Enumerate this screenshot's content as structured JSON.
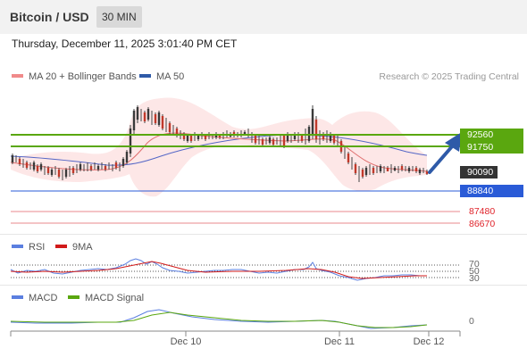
{
  "header": {
    "title": "Bitcoin / USD",
    "interval": "30 MIN"
  },
  "timestamp": "Thursday, December 11, 2025 3:01:40 PM CET",
  "legend": {
    "ma20": {
      "label": "MA 20 + Bollinger Bands",
      "color": "#f08a8a"
    },
    "ma50": {
      "label": "MA 50",
      "color": "#2e5aa8"
    }
  },
  "credit": "Research © 2025 Trading Central",
  "levels": {
    "r2": "92560",
    "r1": "91750",
    "last": "90090",
    "s1": "88840",
    "s2": "87480",
    "s3": "86670"
  },
  "colors": {
    "resistance": "#5aa70f",
    "support": "#2a5bd7",
    "last": "#333333",
    "minor": "#e0242b",
    "arrow": "#2e5aa8"
  },
  "rsi": {
    "label": "RSI",
    "ma_label": "9MA",
    "levels": [
      "70",
      "50",
      "30"
    ]
  },
  "macd": {
    "label": "MACD",
    "signal_label": "MACD Signal",
    "zero": "0"
  },
  "xaxis": [
    "Dec 10",
    "Dec 11",
    "Dec 12"
  ]
}
